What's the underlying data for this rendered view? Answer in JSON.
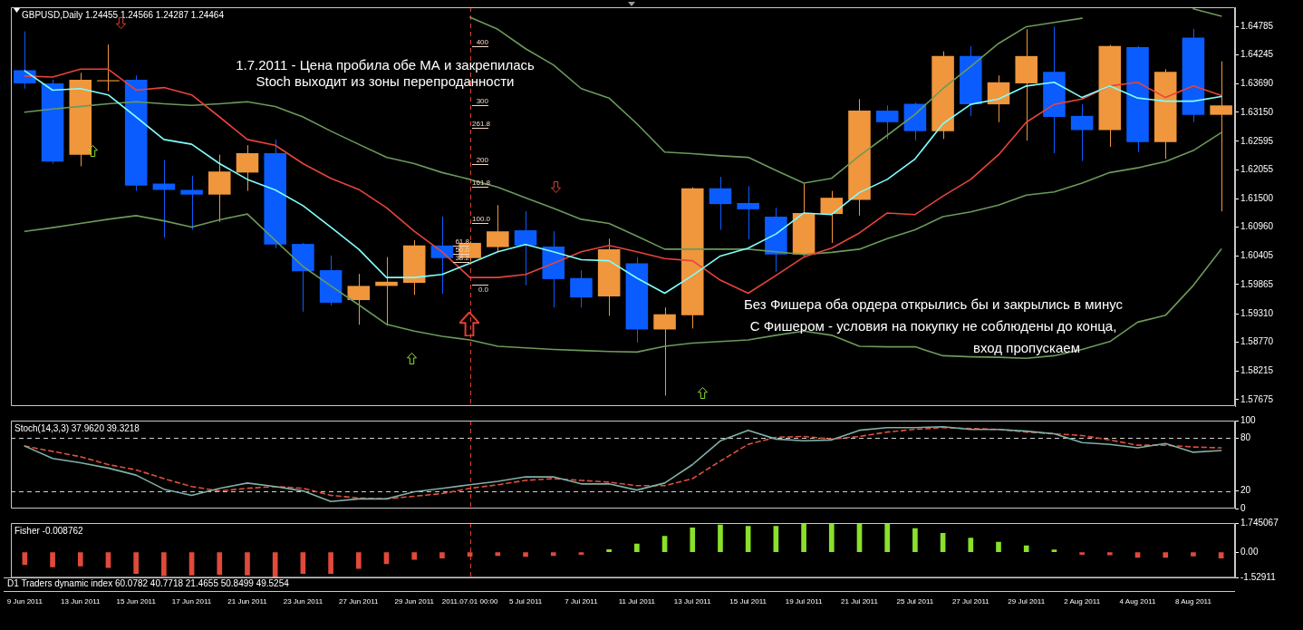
{
  "chart_data": [
    {
      "type": "candlestick",
      "title": "GBPUSD,Daily 1.24455 1.24566 1.24287 1.24464",
      "categories": [
        "9 Jun 2011",
        null,
        "13 Jun 2011",
        null,
        "15 Jun 2011",
        null,
        "17 Jun 2011",
        null,
        "21 Jun 2011",
        null,
        "23 Jun 2011",
        null,
        "27 Jun 2011",
        null,
        "29 Jun 2011",
        null,
        "2011.07.01 00:00",
        null,
        "5 Jul 2011",
        null,
        "7 Jul 2011",
        null,
        "11 Jul 2011",
        null,
        "13 Jul 2011",
        null,
        "15 Jul 2011",
        null,
        "19 Jul 2011",
        null,
        "21 Jul 2011",
        null,
        "25 Jul 2011",
        null,
        "27 Jul 2011",
        null,
        "29 Jul 2011",
        null,
        "2 Aug 2011",
        null,
        "4 Aug 2011",
        null,
        "8 Aug 2011",
        null
      ],
      "ohlc": [
        [
          1.6395,
          1.6469,
          1.636,
          1.637
        ],
        [
          1.637,
          1.6377,
          1.6217,
          1.6221
        ],
        [
          1.6234,
          1.639,
          1.6212,
          1.6377
        ],
        [
          1.6374,
          1.6444,
          1.6355,
          1.6376
        ],
        [
          1.6377,
          1.6385,
          1.6165,
          1.6175
        ],
        [
          1.6179,
          1.6224,
          1.6076,
          1.6167
        ],
        [
          1.6167,
          1.6194,
          1.6091,
          1.6158
        ],
        [
          1.6158,
          1.6234,
          1.6106,
          1.6202
        ],
        [
          1.62,
          1.6252,
          1.6165,
          1.6237
        ],
        [
          1.6237,
          1.6263,
          1.6056,
          1.6063
        ],
        [
          1.6064,
          1.6066,
          1.5935,
          1.6012
        ],
        [
          1.6014,
          1.6042,
          1.5947,
          1.5952
        ],
        [
          1.5957,
          1.6007,
          1.591,
          1.5984
        ],
        [
          1.5984,
          1.6039,
          1.5908,
          1.5992
        ],
        [
          1.599,
          1.6071,
          1.5967,
          1.6061
        ],
        [
          1.6061,
          1.6116,
          1.5969,
          1.6037
        ],
        [
          1.6037,
          1.6069,
          1.6032,
          1.6066
        ],
        [
          1.6058,
          1.6138,
          1.6049,
          1.6088
        ],
        [
          1.609,
          1.6126,
          1.5985,
          1.6061
        ],
        [
          1.6059,
          1.6088,
          1.5943,
          1.5997
        ],
        [
          1.5999,
          1.6014,
          1.5943,
          1.5962
        ],
        [
          1.5964,
          1.6074,
          1.5927,
          1.6054
        ],
        [
          1.6027,
          1.6039,
          1.5876,
          1.5901
        ],
        [
          1.5901,
          1.5943,
          1.5775,
          1.593
        ],
        [
          1.5928,
          1.6172,
          1.5903,
          1.617
        ],
        [
          1.617,
          1.6192,
          1.6091,
          1.614
        ],
        [
          1.6142,
          1.6174,
          1.6073,
          1.613
        ],
        [
          1.6116,
          1.6133,
          1.6011,
          1.6044
        ],
        [
          1.6044,
          1.6179,
          1.6041,
          1.6123
        ],
        [
          1.6121,
          1.6165,
          1.6066,
          1.6152
        ],
        [
          1.6148,
          1.634,
          1.6118,
          1.6318
        ],
        [
          1.6318,
          1.6328,
          1.6263,
          1.6296
        ],
        [
          1.6331,
          1.6333,
          1.6261,
          1.6279
        ],
        [
          1.6279,
          1.6431,
          1.6264,
          1.6422
        ],
        [
          1.6422,
          1.6441,
          1.6308,
          1.633
        ],
        [
          1.633,
          1.6385,
          1.6296,
          1.6372
        ],
        [
          1.637,
          1.6473,
          1.6261,
          1.6422
        ],
        [
          1.6392,
          1.6478,
          1.6237,
          1.6306
        ],
        [
          1.6308,
          1.633,
          1.6222,
          1.6281
        ],
        [
          1.6281,
          1.6443,
          1.6249,
          1.6441
        ],
        [
          1.6439,
          1.6441,
          1.6239,
          1.6258
        ],
        [
          1.6258,
          1.6397,
          1.6226,
          1.6392
        ],
        [
          1.6457,
          1.6474,
          1.6296,
          1.631
        ],
        [
          1.631,
          1.6412,
          1.6126,
          1.6328
        ]
      ],
      "colors": [
        "#0a5cff",
        "#0a5cff",
        "#f0963c",
        "#f0963c",
        "#0a5cff",
        "#0a5cff",
        "#0a5cff",
        "#f0963c",
        "#f0963c",
        "#0a5cff",
        "#0a5cff",
        "#0a5cff",
        "#f0963c",
        "#f0963c",
        "#f0963c",
        "#0a5cff",
        "#f0963c",
        "#f0963c",
        "#0a5cff",
        "#0a5cff",
        "#0a5cff",
        "#f0963c",
        "#0a5cff",
        "#f0963c",
        "#f0963c",
        "#0a5cff",
        "#0a5cff",
        "#0a5cff",
        "#f0963c",
        "#f0963c",
        "#f0963c",
        "#0a5cff",
        "#0a5cff",
        "#f0963c",
        "#0a5cff",
        "#f0963c",
        "#f0963c",
        "#0a5cff",
        "#0a5cff",
        "#f0963c",
        "#0a5cff",
        "#f0963c",
        "#0a5cff",
        "#f0963c"
      ],
      "series": [
        {
          "type": "line",
          "color": "#80ffff",
          "values": [
            1.6394,
            1.6357,
            1.636,
            1.6348,
            1.6306,
            1.6263,
            1.6254,
            1.6217,
            1.6187,
            1.6167,
            1.6137,
            1.6096,
            1.6054,
            1.6,
            1.6,
            1.6006,
            1.6027,
            1.6049,
            1.6063,
            1.6049,
            1.6034,
            1.6032,
            1.5999,
            1.597,
            1.6004,
            1.6041,
            1.6056,
            1.6083,
            1.6123,
            1.612,
            1.6162,
            1.6187,
            1.6226,
            1.6293,
            1.633,
            1.634,
            1.6365,
            1.6372,
            1.6343,
            1.6365,
            1.6342,
            1.6336,
            1.6336,
            1.6345
          ]
        },
        {
          "type": "line",
          "color": "#e8443a",
          "values": [
            1.6384,
            1.6382,
            1.6397,
            1.6397,
            1.6357,
            1.6362,
            1.6348,
            1.6306,
            1.6263,
            1.6252,
            1.6217,
            1.6189,
            1.6168,
            1.6133,
            1.6088,
            1.6049,
            1.6,
            1.6,
            1.6006,
            1.6027,
            1.6049,
            1.6061,
            1.6049,
            1.6036,
            1.6032,
            1.5995,
            1.597,
            1.6004,
            1.6039,
            1.6056,
            1.6085,
            1.6123,
            1.612,
            1.6155,
            1.6187,
            1.6234,
            1.6296,
            1.633,
            1.634,
            1.6365,
            1.6372,
            1.6343,
            1.6365,
            1.6347
          ]
        },
        {
          "type": "line",
          "color": "#6b9a5a",
          "values": [
            null,
            null,
            null,
            null,
            null,
            null,
            null,
            null,
            null,
            null,
            null,
            null,
            null,
            null,
            null,
            null,
            1.6496,
            1.6473,
            1.6436,
            1.6405,
            1.636,
            1.6342,
            1.6293,
            1.6239,
            1.6236,
            1.6232,
            1.6229,
            1.6204,
            1.618,
            1.6189,
            1.6232,
            1.6271,
            1.6311,
            1.636,
            1.6402,
            1.6446,
            1.6478,
            1.6486,
            1.6494,
            null,
            null,
            null,
            1.6512,
            1.6498
          ]
        },
        {
          "type": "line",
          "color": "#6b9a5a",
          "values": [
            1.6315,
            1.6321,
            1.6326,
            1.6331,
            1.6335,
            1.6331,
            1.6328,
            1.6331,
            1.6335,
            1.6326,
            1.6306,
            1.6279,
            1.6254,
            1.6229,
            1.6217,
            1.62,
            1.6187,
            1.6172,
            1.6152,
            1.6132,
            1.6111,
            1.6103,
            1.6079,
            1.6054,
            1.6054,
            1.6054,
            1.6054,
            1.6049,
            1.6044,
            1.6048,
            1.6054,
            1.6074,
            1.6091,
            1.6116,
            1.6125,
            1.6138,
            1.6157,
            1.6163,
            1.618,
            1.62,
            1.6209,
            1.6221,
            1.6242,
            1.6276
          ]
        },
        {
          "type": "line",
          "color": "#6b9a5a",
          "values": [
            1.6088,
            1.6095,
            1.6103,
            1.6111,
            1.6118,
            1.6108,
            1.6096,
            1.611,
            1.6121,
            1.6071,
            1.6021,
            1.5984,
            1.5948,
            1.5911,
            1.5898,
            1.5888,
            1.5881,
            1.5869,
            1.5866,
            1.5863,
            1.5861,
            1.5859,
            1.5858,
            1.5869,
            1.5875,
            1.5878,
            1.5881,
            1.589,
            1.5898,
            1.589,
            1.5869,
            1.5868,
            1.5868,
            1.5851,
            1.5849,
            1.5848,
            1.5846,
            1.5851,
            1.5863,
            1.5878,
            1.5915,
            1.5928,
            1.5985,
            1.6054
          ]
        }
      ],
      "ylim": [
        1.5755,
        1.6515
      ],
      "yticks": [
        1.64785,
        1.64245,
        {
          "value": 1.6369,
          "label": "1.63690"
        },
        {
          "value": 1.6315,
          "label": "1.63150"
        },
        1.62595,
        1.62055,
        {
          "value": 1.615,
          "label": "1.61500"
        },
        {
          "value": 1.6096,
          "label": "1.60960"
        },
        1.60405,
        1.59865,
        {
          "value": 1.5931,
          "label": "1.59310"
        },
        {
          "value": 1.5877,
          "label": "1.58770"
        },
        1.58215,
        1.57675
      ],
      "tick_labels": "y",
      "marker": "none",
      "ref_lines": [
        {
          "axis": "x",
          "value": "2011.07.01 00:00",
          "color": "#e04030",
          "line_style": "dashed"
        }
      ],
      "annotations": [
        "1.7.2011 - Цена пробила обе МА и закрепилась",
        "Stoch выходит из зоны перепроданности",
        "Без Фишера оба ордера открылись бы и закрылись в минус",
        "С Фишером - условия на покупку не соблюдены до конца,",
        "вход пропускаем",
        "400",
        "300",
        "261.8",
        "200",
        "161.8",
        "100.0",
        "61.8",
        "50.0",
        "38.2",
        "0.0"
      ]
    },
    {
      "type": "line",
      "title": "Stoch(14,3,3) 37.9620 39.3218",
      "categories": [
        "9 Jun 2011",
        null,
        "13 Jun 2011",
        null,
        "15 Jun 2011",
        null,
        "17 Jun 2011",
        null,
        "21 Jun 2011",
        null,
        "23 Jun 2011",
        null,
        "27 Jun 2011",
        null,
        "29 Jun 2011",
        null,
        "2011.07.01 00:00",
        null,
        "5 Jul 2011",
        null,
        "7 Jul 2011",
        null,
        "11 Jul 2011",
        null,
        "13 Jul 2011",
        null,
        "15 Jul 2011",
        null,
        "19 Jul 2011",
        null,
        "21 Jul 2011",
        null,
        "25 Jul 2011",
        null,
        "27 Jul 2011",
        null,
        "29 Jul 2011",
        null,
        "2 Aug 2011",
        null,
        "4 Aug 2011",
        null,
        "8 Aug 2011",
        null
      ],
      "series": [
        {
          "type": "line",
          "color": "#7fb0a8",
          "values": [
            71,
            57,
            52,
            46,
            38,
            22,
            15,
            23,
            29,
            25,
            20,
            8,
            11,
            11,
            19,
            23,
            27,
            31,
            36,
            36,
            28,
            28,
            21,
            29,
            50,
            77,
            89,
            79,
            77,
            78,
            89,
            92,
            92,
            93,
            90,
            90,
            88,
            85,
            75,
            73,
            69,
            74,
            64,
            66
          ]
        },
        {
          "type": "line",
          "color": "#e0503c",
          "line_style": "dashed",
          "values": [
            71,
            65,
            59,
            50,
            44,
            34,
            25,
            20,
            23,
            25,
            23,
            15,
            12,
            11,
            14,
            17,
            23,
            27,
            32,
            34,
            32,
            30,
            26,
            26,
            34,
            54,
            73,
            81,
            82,
            79,
            82,
            87,
            90,
            92,
            91,
            90,
            87,
            85,
            83,
            78,
            72,
            72,
            70,
            69
          ]
        }
      ],
      "ylim": [
        0,
        100
      ],
      "yticks": [
        0,
        20,
        80,
        100
      ],
      "tick_labels": "y",
      "marker": "none",
      "ref_lines": [
        {
          "axis": "y",
          "value": 20,
          "color": "#d0d0d0",
          "line_style": "dashed"
        },
        {
          "axis": "y",
          "value": 80,
          "color": "#d0d0d0",
          "line_style": "dashed"
        },
        {
          "axis": "x",
          "value": "2011.07.01 00:00",
          "color": "#e04030",
          "line_style": "dashed"
        }
      ]
    },
    {
      "type": "bar",
      "title": "Fisher -0.008762",
      "categories": [
        "9 Jun 2011",
        null,
        "13 Jun 2011",
        null,
        "15 Jun 2011",
        null,
        "17 Jun 2011",
        null,
        "21 Jun 2011",
        null,
        "23 Jun 2011",
        null,
        "27 Jun 2011",
        null,
        "29 Jun 2011",
        null,
        "2011.07.01 00:00",
        null,
        "5 Jul 2011",
        null,
        "7 Jul 2011",
        null,
        "11 Jul 2011",
        null,
        "13 Jul 2011",
        null,
        "15 Jul 2011",
        null,
        "19 Jul 2011",
        null,
        "21 Jul 2011",
        null,
        "25 Jul 2011",
        null,
        "27 Jul 2011",
        null,
        "29 Jul 2011",
        null,
        "2 Aug 2011",
        null,
        "4 Aug 2011",
        null,
        "8 Aug 2011",
        null
      ],
      "values": [
        -0.74,
        -0.88,
        -0.82,
        -0.92,
        -1.27,
        -1.41,
        -1.37,
        -1.33,
        -1.37,
        -1.52,
        -1.27,
        -1.27,
        -0.98,
        -0.69,
        -0.43,
        -0.35,
        -0.24,
        -0.2,
        -0.25,
        -0.2,
        -0.14,
        0.16,
        0.49,
        0.95,
        1.46,
        1.63,
        1.55,
        1.55,
        1.71,
        1.74,
        1.74,
        1.67,
        1.42,
        1.13,
        0.85,
        0.6,
        0.39,
        0.14,
        -0.14,
        -0.16,
        -0.31,
        -0.31,
        -0.23,
        -0.35
      ],
      "colors": [
        "#e04a3a",
        "#e04a3a",
        "#e04a3a",
        "#e04a3a",
        "#e04a3a",
        "#e04a3a",
        "#e04a3a",
        "#e04a3a",
        "#e04a3a",
        "#e04a3a",
        "#e04a3a",
        "#e04a3a",
        "#e04a3a",
        "#e04a3a",
        "#e04a3a",
        "#e04a3a",
        "#e04a3a",
        "#e04a3a",
        "#e04a3a",
        "#e04a3a",
        "#e04a3a",
        "#8ae02a",
        "#8ae02a",
        "#8ae02a",
        "#8ae02a",
        "#8ae02a",
        "#8ae02a",
        "#8ae02a",
        "#8ae02a",
        "#8ae02a",
        "#8ae02a",
        "#8ae02a",
        "#8ae02a",
        "#8ae02a",
        "#8ae02a",
        "#8ae02a",
        "#8ae02a",
        "#8ae02a",
        "#e04a3a",
        "#e04a3a",
        "#e04a3a",
        "#e04a3a",
        "#e04a3a",
        "#e04a3a"
      ],
      "ylim": [
        -1.52911,
        1.745067
      ],
      "yticks": [
        1.745067,
        {
          "value": 0,
          "label": "0.00"
        },
        -1.52911
      ],
      "ref_lines": [
        {
          "axis": "x",
          "value": "2011.07.01 00:00",
          "color": "#e04030",
          "line_style": "dashed"
        }
      ]
    },
    {
      "type": "other",
      "title": "D1 Traders dynamic index 60.0782 40.7718 21.4655 50.8499 49.5254"
    }
  ]
}
